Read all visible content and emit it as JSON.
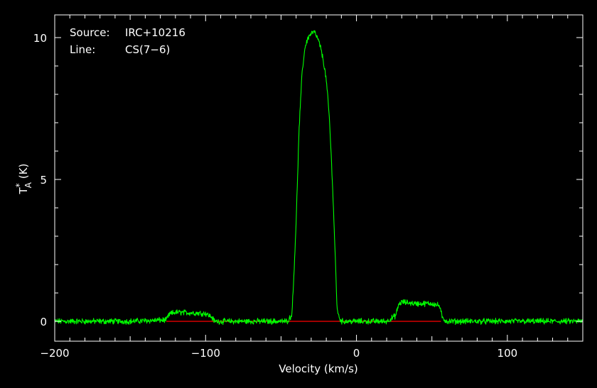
{
  "chart_data": {
    "type": "line",
    "title": "",
    "xlabel": "Velocity (km/s)",
    "ylabel_main": "T",
    "ylabel_star": "*",
    "ylabel_sub": "A",
    "ylabel_unit": "(K)",
    "xlim": [
      -200,
      150
    ],
    "ylim": [
      -0.7,
      10.8
    ],
    "xticks_major": [
      -200,
      -100,
      0,
      100
    ],
    "xtick_labels": [
      "−200",
      "−100",
      "0",
      "100"
    ],
    "yticks_major": [
      0,
      5,
      10
    ],
    "ytick_labels": [
      "0",
      "5",
      "10"
    ],
    "grid": false,
    "annotations": [
      {
        "key": "Source:",
        "value": "IRC+10216"
      },
      {
        "key": "Line:",
        "value": "CS(7−6)"
      }
    ],
    "series": [
      {
        "color": "#00ff00",
        "x": [
          -200,
          -150,
          -126,
          -124,
          -120,
          -110,
          -100,
          -96,
          -94,
          -60,
          -46,
          -43,
          -42,
          -40,
          -38,
          -36,
          -34,
          -32,
          -30,
          -28,
          -26,
          -24,
          -22,
          -20,
          -18,
          -16,
          -14,
          -13,
          -12,
          -10,
          0,
          20,
          26,
          28,
          30,
          40,
          50,
          55,
          57,
          60,
          100,
          150
        ],
        "y": [
          0.0,
          0.0,
          0.05,
          0.25,
          0.32,
          0.3,
          0.28,
          0.15,
          0.0,
          0.0,
          0.0,
          0.2,
          1.0,
          3.5,
          6.8,
          8.8,
          9.7,
          10.0,
          10.15,
          10.2,
          10.0,
          9.7,
          9.2,
          8.5,
          7.2,
          5.0,
          2.2,
          0.6,
          0.2,
          0.0,
          0.0,
          0.0,
          0.2,
          0.6,
          0.68,
          0.62,
          0.63,
          0.55,
          0.1,
          0.0,
          0.0,
          0.0
        ]
      },
      {
        "color": "#ff0000",
        "x": [
          -126,
          56
        ],
        "y": [
          0,
          0
        ]
      }
    ]
  }
}
